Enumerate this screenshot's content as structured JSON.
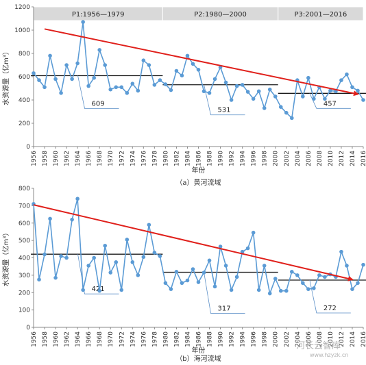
{
  "watermark": {
    "name": "河长云智库",
    "url": "www.hzyzk.cn"
  },
  "chart_data": [
    {
      "type": "line",
      "id": "a",
      "caption": "（a）黄河流域",
      "xlabel": "年份",
      "ylabel": "水资源量（亿m³）",
      "ylim": [
        0,
        1200
      ],
      "yticks": [
        0,
        200,
        400,
        600,
        800,
        1000,
        1200
      ],
      "xlim": [
        1956,
        2016
      ],
      "xticks": [
        "1956",
        "1958",
        "1960",
        "1962",
        "1964",
        "1966",
        "1968",
        "1970",
        "1972",
        "1974",
        "1976",
        "1978",
        "1980",
        "1982",
        "1984",
        "1986",
        "1988",
        "1990",
        "1992",
        "1994",
        "1996",
        "1998",
        "2000",
        "2002",
        "2004",
        "2006",
        "2008",
        "2010",
        "2012",
        "2014",
        "2016"
      ],
      "grid": false,
      "periods": [
        {
          "label": "P1:1956—1979",
          "start": 1956,
          "end": 1979
        },
        {
          "label": "P2:1980—2000",
          "start": 1980,
          "end": 2000
        },
        {
          "label": "P3:2001—2016",
          "start": 2001,
          "end": 2016
        }
      ],
      "means": [
        {
          "label": "609",
          "value": 609,
          "start": 1956,
          "end": 1979
        },
        {
          "label": "531",
          "value": 531,
          "start": 1980,
          "end": 2000
        },
        {
          "label": "457",
          "value": 457,
          "start": 2001,
          "end": 2016
        }
      ],
      "trend": {
        "from": [
          1958,
          1010
        ],
        "to": [
          2015,
          450
        ]
      },
      "series": [
        {
          "x": [
            1956,
            1957,
            1958,
            1959,
            1960,
            1961,
            1962,
            1963,
            1964,
            1965,
            1966,
            1967,
            1968,
            1969,
            1970,
            1971,
            1972,
            1973,
            1974,
            1975,
            1976,
            1977,
            1978,
            1979,
            1980,
            1981,
            1982,
            1983,
            1984,
            1985,
            1986,
            1987,
            1988,
            1989,
            1990,
            1991,
            1992,
            1993,
            1994,
            1995,
            1996,
            1997,
            1998,
            1999,
            2000,
            2001,
            2002,
            2003,
            2004,
            2005,
            2006,
            2007,
            2008,
            2009,
            2010,
            2011,
            2012,
            2013,
            2014,
            2015,
            2016
          ],
          "values": [
            630,
            570,
            510,
            780,
            580,
            460,
            700,
            580,
            715,
            1070,
            520,
            590,
            830,
            700,
            490,
            510,
            510,
            460,
            540,
            480,
            740,
            700,
            530,
            570,
            535,
            485,
            650,
            610,
            780,
            710,
            660,
            475,
            460,
            580,
            680,
            550,
            400,
            520,
            530,
            470,
            410,
            475,
            330,
            490,
            430,
            340,
            290,
            245,
            570,
            430,
            590,
            410,
            510,
            410,
            480,
            475,
            570,
            620,
            510,
            480,
            400
          ]
        }
      ]
    },
    {
      "type": "line",
      "id": "b",
      "caption": "（b）海河流域",
      "xlabel": "年份",
      "ylabel": "水资源量（亿m³）",
      "ylim": [
        0,
        800
      ],
      "yticks": [
        0,
        100,
        200,
        300,
        400,
        500,
        600,
        700,
        800
      ],
      "xlim": [
        1956,
        2016
      ],
      "xticks": [
        "1956",
        "1958",
        "1960",
        "1962",
        "1964",
        "1966",
        "1968",
        "1970",
        "1972",
        "1974",
        "1976",
        "1978",
        "1980",
        "1982",
        "1984",
        "1986",
        "1988",
        "1990",
        "1992",
        "1994",
        "1996",
        "1998",
        "2000",
        "2002",
        "2004",
        "2006",
        "2008",
        "2010",
        "2012",
        "2014",
        "2016"
      ],
      "grid": false,
      "periods": [],
      "means": [
        {
          "label": "421",
          "value": 421,
          "start": 1956,
          "end": 1979
        },
        {
          "label": "317",
          "value": 317,
          "start": 1980,
          "end": 2000
        },
        {
          "label": "272",
          "value": 272,
          "start": 2001,
          "end": 2016
        }
      ],
      "trend": {
        "from": [
          1956,
          705
        ],
        "to": [
          2014,
          275
        ]
      },
      "series": [
        {
          "x": [
            1956,
            1957,
            1958,
            1959,
            1960,
            1961,
            1962,
            1963,
            1964,
            1965,
            1966,
            1967,
            1968,
            1969,
            1970,
            1971,
            1972,
            1973,
            1974,
            1975,
            1976,
            1977,
            1978,
            1979,
            1980,
            1981,
            1982,
            1983,
            1984,
            1985,
            1986,
            1987,
            1988,
            1989,
            1990,
            1991,
            1992,
            1993,
            1994,
            1995,
            1996,
            1997,
            1998,
            1999,
            2000,
            2001,
            2002,
            2003,
            2004,
            2005,
            2006,
            2007,
            2008,
            2009,
            2010,
            2011,
            2012,
            2013,
            2014,
            2015,
            2016
          ],
          "values": [
            710,
            275,
            420,
            625,
            285,
            410,
            400,
            620,
            740,
            215,
            355,
            400,
            210,
            470,
            315,
            375,
            215,
            505,
            375,
            300,
            405,
            590,
            430,
            410,
            255,
            220,
            320,
            255,
            270,
            335,
            260,
            315,
            385,
            235,
            465,
            355,
            215,
            290,
            435,
            455,
            545,
            215,
            355,
            195,
            280,
            210,
            210,
            320,
            300,
            255,
            220,
            225,
            300,
            290,
            305,
            290,
            435,
            355,
            220,
            255,
            360
          ]
        }
      ]
    }
  ]
}
